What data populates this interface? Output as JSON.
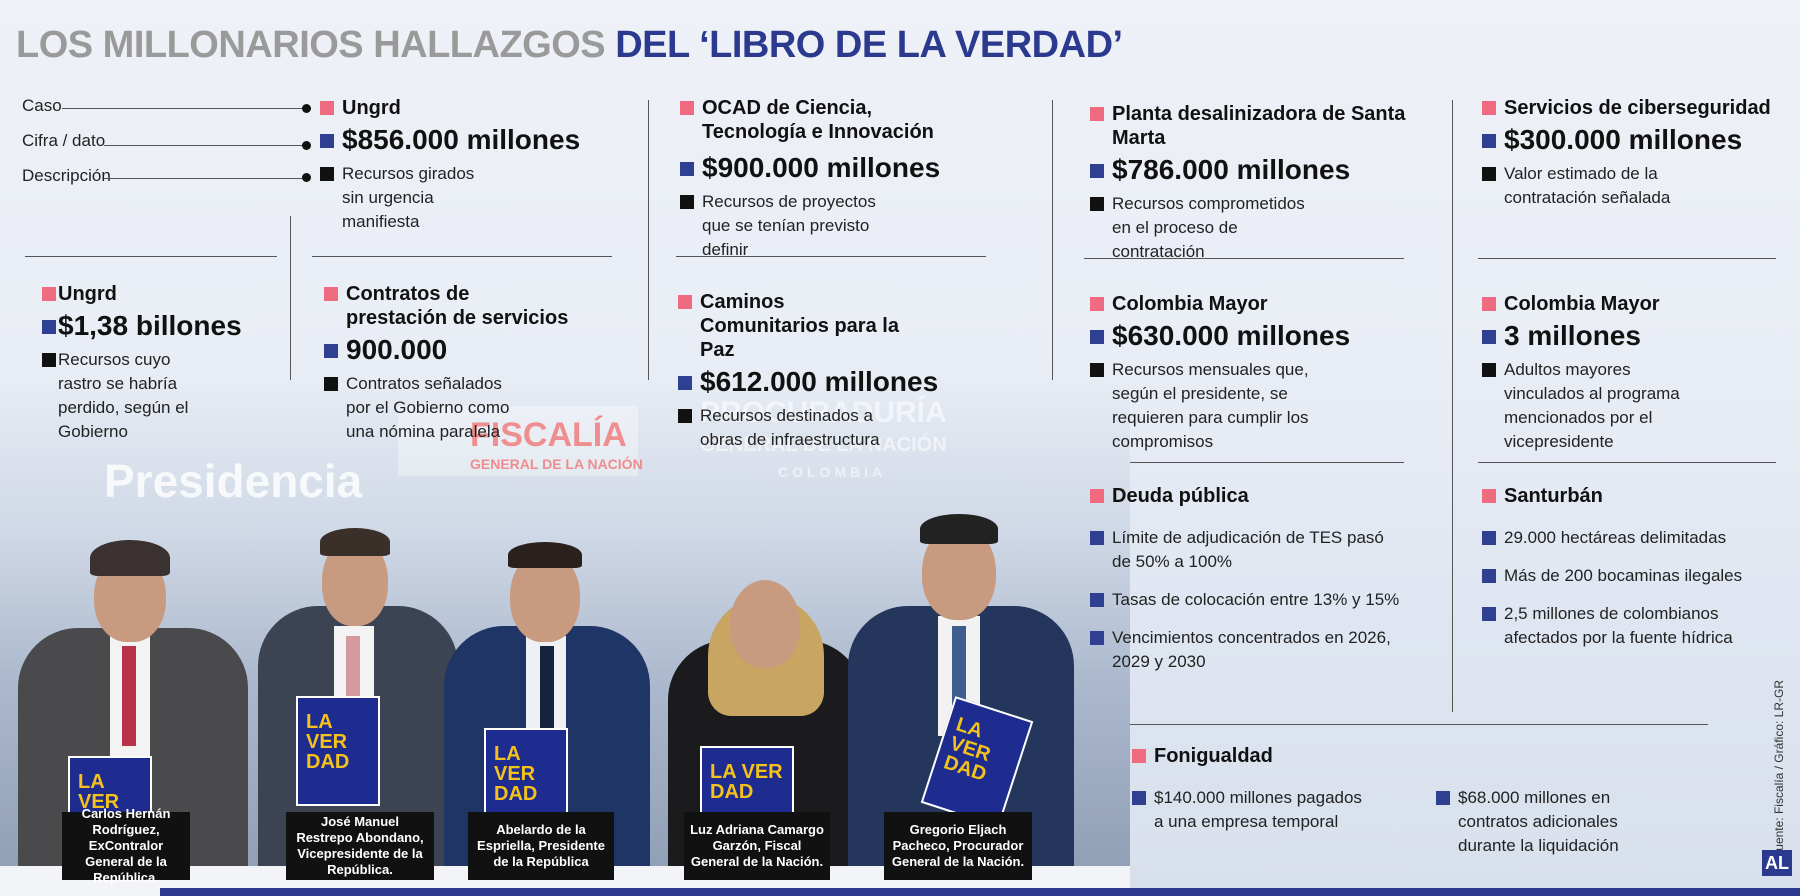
{
  "title": {
    "part1": "LOS MILLONARIOS HALLAZGOS",
    "part2": "DEL ‘LIBRO DE LA VERDAD’"
  },
  "legend": {
    "caso": "Caso",
    "cifra": "Cifra / dato",
    "descripcion": "Descripción"
  },
  "colors": {
    "case_marker": "#ef6b7f",
    "figure_marker": "#2f3f92",
    "desc_marker": "#111111",
    "title_accent": "#2b3a8f"
  },
  "items": {
    "ungrd1": {
      "case": "Ungrd",
      "figure": "$856.000 millones",
      "desc": "Recursos girados sin urgencia manifiesta"
    },
    "ocad": {
      "case": "OCAD de Ciencia, Tecnología e Innovación",
      "figure": "$900.000 millones",
      "desc": "Recursos de proyectos que se tenían previsto definir"
    },
    "planta": {
      "case": "Planta desalinizadora de Santa Marta",
      "figure": "$786.000 millones",
      "desc": "Recursos comprometidos en el proceso de contratación"
    },
    "ciber": {
      "case": "Servicios de ciberseguridad",
      "figure": "$300.000 millones",
      "desc": "Valor estimado de la contratación señalada"
    },
    "ungrd2": {
      "case": "Ungrd",
      "figure": "$1,38 billones",
      "desc": "Recursos cuyo rastro se habría perdido, según el Gobierno"
    },
    "contratos": {
      "case": "Contratos de prestación de servicios",
      "figure": "900.000",
      "desc": "Contratos señalados por el Gobierno como una nómina paralela"
    },
    "caminos": {
      "case": "Caminos Comunitarios para la Paz",
      "figure": "$612.000 millones",
      "desc": "Recursos destinados a obras de infraestructura"
    },
    "colmayor1": {
      "case": "Colombia Mayor",
      "figure": "$630.000 millones",
      "desc": "Recursos mensuales que, según el presidente, se requieren para cumplir los compromisos"
    },
    "colmayor2": {
      "case": "Colombia Mayor",
      "figure": "3 millones",
      "desc": "Adultos mayores vinculados al programa mencionados por el vicepresidente"
    }
  },
  "deuda": {
    "case": "Deuda pública",
    "bullets": [
      "Límite de adjudicación de TES pasó de 50% a 100%",
      "Tasas de colocación entre 13% y 15%",
      "Vencimientos concentrados en 2026, 2029 y 2030"
    ]
  },
  "santurban": {
    "case": "Santurbán",
    "bullets": [
      "29.000 hectáreas delimitadas",
      "Más de 200 bocaminas ilegales",
      "2,5 millones de colombianos afectados por la fuente hídrica"
    ]
  },
  "fonigualdad": {
    "case": "Fonigualdad",
    "bullets": [
      "$140.000 millones pagados a una empresa temporal",
      "$68.000 millones en contratos adicionales durante la liquidación"
    ]
  },
  "photo": {
    "backdrop": {
      "presidencia": "Presidencia",
      "fiscalia": "FISCALÍA",
      "fiscalia_sub": "GENERAL DE LA NACIÓN",
      "procuraduria": "PROCURADURÍA",
      "procuraduria_sub": "GENERAL DE LA NACIÓN",
      "colombia": "COLOMBIA"
    },
    "book_text": "LA VER DAD",
    "captions": [
      "Carlos Hernán Rodríguez, ExContralor General de la República.",
      "José Manuel Restrepo Abondano, Vicepresidente de la República.",
      "Abelardo de la Espriella, Presidente de la República",
      "Luz Adriana Camargo Garzón, Fiscal General de la Nación.",
      "Gregorio Eljach Pacheco, Procurador General de la Nación."
    ]
  },
  "source": "Fuente: Fiscalía / Gráfico: LR-GR",
  "brand": "AL"
}
